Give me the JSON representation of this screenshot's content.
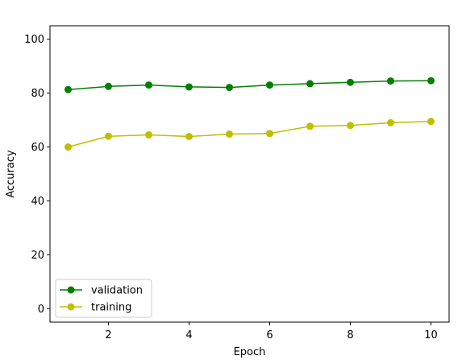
{
  "chart_data": {
    "type": "line",
    "title": "",
    "xlabel": "Epoch",
    "ylabel": "Accuracy",
    "xlim": [
      0.55,
      10.45
    ],
    "ylim": [
      -5,
      105
    ],
    "xticks": [
      2,
      4,
      6,
      8,
      10
    ],
    "yticks": [
      0,
      20,
      40,
      60,
      80,
      100
    ],
    "grid": false,
    "legend_position": "lower-left",
    "x": [
      1,
      2,
      3,
      4,
      5,
      6,
      7,
      8,
      9,
      10
    ],
    "series": [
      {
        "name": "validation",
        "color": "#008000",
        "marker": "circle",
        "values": [
          81.3,
          82.5,
          83.0,
          82.3,
          82.1,
          83.0,
          83.5,
          84.0,
          84.5,
          84.6
        ]
      },
      {
        "name": "training",
        "color": "#bfbf00",
        "marker": "circle",
        "values": [
          60.0,
          64.0,
          64.5,
          63.9,
          64.8,
          65.0,
          67.7,
          68.0,
          69.0,
          69.5
        ]
      }
    ]
  }
}
